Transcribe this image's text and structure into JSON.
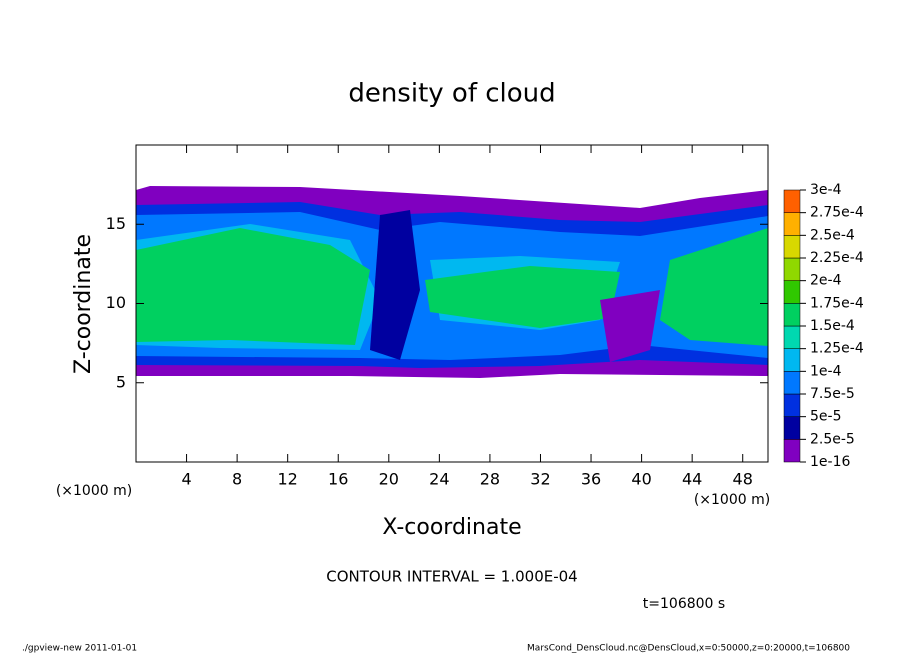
{
  "chart_data": {
    "type": "contour",
    "title": "density of cloud",
    "xlabel": "X-coordinate",
    "ylabel": "Z-coordinate",
    "x_unit": "(×1000 m)",
    "xlim": [
      0,
      50
    ],
    "xticks": [
      4,
      8,
      12,
      16,
      20,
      24,
      28,
      32,
      36,
      40,
      44,
      48
    ],
    "ylim": [
      0,
      20
    ],
    "yticks": [
      5,
      10,
      15
    ],
    "colorbar": {
      "levels": [
        {
          "value": 1e-16,
          "label": "1e-16"
        },
        {
          "value": 2.5e-05,
          "label": "2.5e-5"
        },
        {
          "value": 5e-05,
          "label": "5e-5"
        },
        {
          "value": 7.5e-05,
          "label": "7.5e-5"
        },
        {
          "value": 0.0001,
          "label": "1e-4"
        },
        {
          "value": 0.000125,
          "label": "1.25e-4"
        },
        {
          "value": 0.00015,
          "label": "1.5e-4"
        },
        {
          "value": 0.000175,
          "label": "1.75e-4"
        },
        {
          "value": 0.0002,
          "label": "2e-4"
        },
        {
          "value": 0.000225,
          "label": "2.25e-4"
        },
        {
          "value": 0.00025,
          "label": "2.5e-4"
        },
        {
          "value": 0.000275,
          "label": "2.75e-4"
        },
        {
          "value": 0.0003,
          "label": "3e-4"
        }
      ],
      "colors": [
        "#8000c0",
        "#0000a0",
        "#0030e0",
        "#0078ff",
        "#00b8f0",
        "#00d8b0",
        "#00d060",
        "#30c800",
        "#90d800",
        "#d8d800",
        "#ffb000",
        "#ff6000",
        "#ff2000",
        "#ff8080"
      ]
    },
    "contour_interval": "CONTOUR INTERVAL = 1.000E-04",
    "time": "t=106800 s",
    "footer_left": "./gpview-new   2011-01-01",
    "footer_right": "MarsCond_DensCloud.nc@DensCloud,x=0:50000,z=0:20000,t=106800"
  }
}
